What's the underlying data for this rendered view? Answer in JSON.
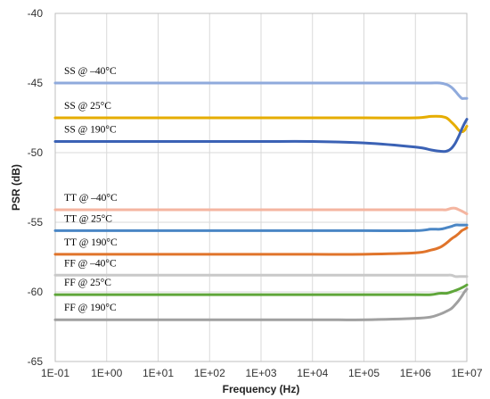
{
  "chart_data": {
    "type": "line",
    "title": "",
    "xlabel": "Frequency (Hz)",
    "ylabel": "PSR (dB)",
    "xscale": "log",
    "xlim": [
      0.1,
      10000000
    ],
    "ylim": [
      -65,
      -40
    ],
    "grid": true,
    "x_ticks": [
      "1E-01",
      "1E+00",
      "1E+01",
      "1E+02",
      "1E+03",
      "1E+04",
      "1E+05",
      "1E+06",
      "1E+07"
    ],
    "y_ticks": [
      "-40",
      "-45",
      "-50",
      "-55",
      "-60",
      "-65"
    ],
    "x": [
      0.1,
      1,
      10,
      100,
      1000,
      10000,
      100000,
      1000000,
      2000000,
      3000000,
      4000000,
      5000000,
      6000000,
      7000000,
      8000000,
      9000000,
      10000000
    ],
    "series": [
      {
        "name": "SS @ –40°C",
        "color": "#8faadc",
        "values": [
          -45.0,
          -45.0,
          -45.0,
          -45.0,
          -45.0,
          -45.0,
          -45.0,
          -45.0,
          -45.0,
          -45.0,
          -45.1,
          -45.3,
          -45.6,
          -45.9,
          -46.1,
          -46.1,
          -46.1
        ]
      },
      {
        "name": "SS @ 25°C",
        "color": "#e6ad00",
        "values": [
          -47.5,
          -47.5,
          -47.5,
          -47.5,
          -47.5,
          -47.5,
          -47.5,
          -47.5,
          -47.4,
          -47.4,
          -47.5,
          -47.8,
          -48.1,
          -48.4,
          -48.5,
          -48.4,
          -48.1
        ]
      },
      {
        "name": "SS @ 190°C",
        "color": "#3b62b5",
        "values": [
          -49.2,
          -49.2,
          -49.2,
          -49.2,
          -49.2,
          -49.2,
          -49.3,
          -49.6,
          -49.8,
          -49.9,
          -49.9,
          -49.7,
          -49.3,
          -48.8,
          -48.3,
          -47.9,
          -47.6
        ]
      },
      {
        "name": "TT @ –40°C",
        "color": "#f4b5a0",
        "values": [
          -54.1,
          -54.1,
          -54.1,
          -54.1,
          -54.1,
          -54.1,
          -54.1,
          -54.1,
          -54.1,
          -54.1,
          -54.1,
          -54.0,
          -54.0,
          -54.1,
          -54.2,
          -54.3,
          -54.4
        ]
      },
      {
        "name": "TT @ 25°C",
        "color": "#4a86c5",
        "values": [
          -55.6,
          -55.6,
          -55.6,
          -55.6,
          -55.6,
          -55.6,
          -55.6,
          -55.6,
          -55.5,
          -55.5,
          -55.4,
          -55.3,
          -55.2,
          -55.2,
          -55.2,
          -55.2,
          -55.2
        ]
      },
      {
        "name": "TT @ 190°C",
        "color": "#e0742b",
        "values": [
          -57.3,
          -57.3,
          -57.3,
          -57.3,
          -57.3,
          -57.3,
          -57.3,
          -57.2,
          -57.0,
          -56.8,
          -56.5,
          -56.2,
          -56.0,
          -55.8,
          -55.6,
          -55.5,
          -55.4
        ]
      },
      {
        "name": "FF @ –40°C",
        "color": "#c9c9c9",
        "values": [
          -58.8,
          -58.8,
          -58.8,
          -58.8,
          -58.8,
          -58.8,
          -58.8,
          -58.8,
          -58.8,
          -58.8,
          -58.8,
          -58.8,
          -58.9,
          -58.9,
          -58.9,
          -58.9,
          -58.9
        ]
      },
      {
        "name": "FF @ 25°C",
        "color": "#5fa63a",
        "values": [
          -60.2,
          -60.2,
          -60.2,
          -60.2,
          -60.2,
          -60.2,
          -60.2,
          -60.2,
          -60.2,
          -60.1,
          -60.1,
          -60.0,
          -59.9,
          -59.8,
          -59.7,
          -59.6,
          -59.5
        ]
      },
      {
        "name": "FF @ 190°C",
        "color": "#a0a0a0",
        "values": [
          -62.0,
          -62.0,
          -62.0,
          -62.0,
          -62.0,
          -62.0,
          -62.0,
          -61.9,
          -61.8,
          -61.6,
          -61.4,
          -61.2,
          -60.9,
          -60.6,
          -60.3,
          -60.0,
          -59.8
        ]
      }
    ]
  }
}
